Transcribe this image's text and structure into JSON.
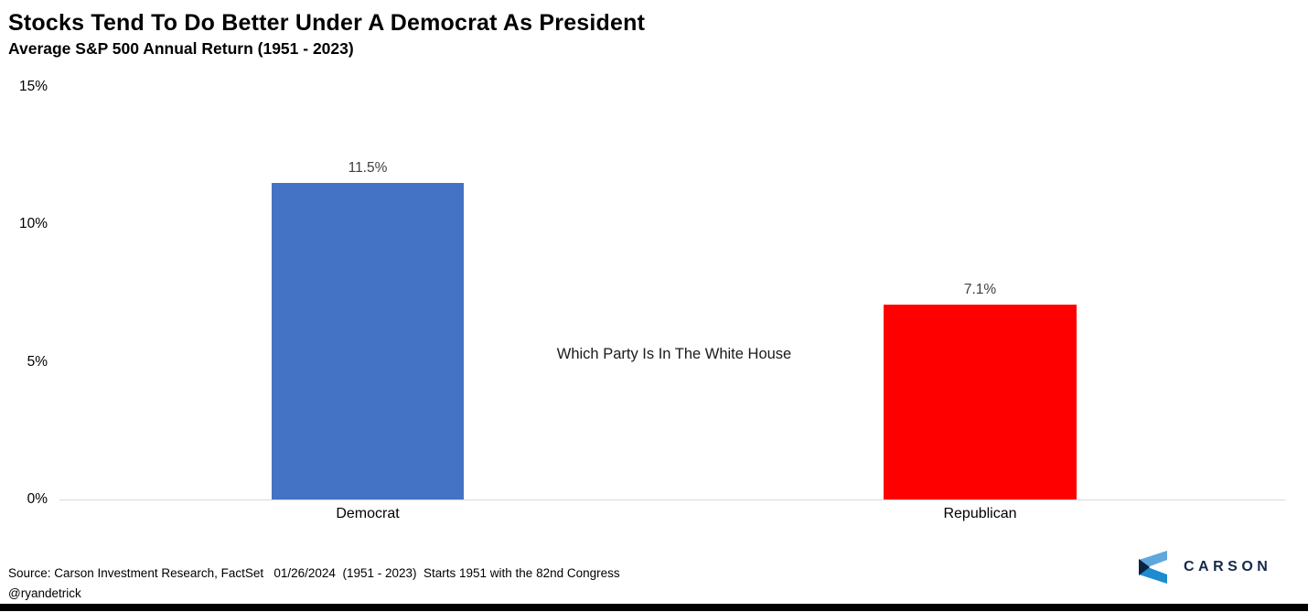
{
  "header": {
    "title": "Stocks Tend To Do Better Under A Democrat As President",
    "subtitle": "Average S&P 500 Annual Return (1951 - 2023)"
  },
  "chart_data": {
    "type": "bar",
    "title": "Stocks Tend To Do Better Under A Democrat As President",
    "subtitle": "Average S&P 500 Annual Return (1951 - 2023)",
    "categories": [
      "Democrat",
      "Republican"
    ],
    "values": [
      11.5,
      7.1
    ],
    "value_labels": [
      "11.5%",
      "7.1%"
    ],
    "bar_colors": [
      "#4472C4",
      "#FF0000"
    ],
    "annotation": "Which Party Is In The White House",
    "xlabel": "",
    "ylabel": "",
    "ylim": [
      0,
      15
    ],
    "yticks": [
      {
        "value": 0,
        "label": "0%"
      },
      {
        "value": 5,
        "label": "5%"
      },
      {
        "value": 10,
        "label": "10%"
      },
      {
        "value": 15,
        "label": "15%"
      }
    ],
    "grid": false,
    "legend": "none"
  },
  "footer": {
    "source": "Source: Carson Investment Research, FactSet   01/26/2024  (1951 - 2023)  Starts 1951 with the 82nd Congress",
    "handle": "@ryandetrick",
    "brand": "CARSON"
  },
  "colors": {
    "democrat_bar": "#4472C4",
    "republican_bar": "#FF0000",
    "value_label": "#404040",
    "axis_line": "#D9D9D9",
    "brand_navy": "#16294C",
    "logo_light_blue": "#5FA8DC",
    "logo_mid_blue": "#1E8BD1",
    "logo_dark_navy": "#0E2240"
  }
}
